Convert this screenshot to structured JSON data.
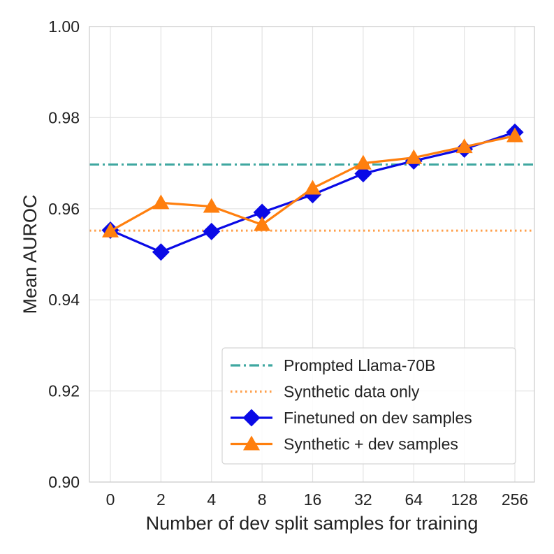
{
  "chart_data": {
    "type": "line",
    "title": "",
    "xlabel": "Number of dev split samples for training",
    "ylabel": "Mean AUROC",
    "categories": [
      "0",
      "2",
      "4",
      "8",
      "16",
      "32",
      "64",
      "128",
      "256"
    ],
    "ylim": [
      0.9,
      1.0
    ],
    "yticks": [
      0.9,
      0.92,
      0.94,
      0.96,
      0.98,
      1.0
    ],
    "ytick_labels": [
      "0.90",
      "0.92",
      "0.94",
      "0.96",
      "0.98",
      "1.00"
    ],
    "grid": true,
    "legend_position": "lower-right",
    "reference_lines": [
      {
        "name": "Prompted Llama-70B",
        "value": 0.9697,
        "color": "#3fa7a0",
        "style": "dashdot"
      },
      {
        "name": "Synthetic data only",
        "value": 0.9552,
        "color": "#ff9f4a",
        "style": "dotted"
      }
    ],
    "series": [
      {
        "name": "Finetuned on dev samples",
        "color": "#0a0ae6",
        "marker": "diamond",
        "values": [
          0.9553,
          0.9505,
          0.955,
          0.9592,
          0.9631,
          0.9677,
          0.9705,
          0.9731,
          0.9768
        ]
      },
      {
        "name": "Synthetic + dev samples",
        "color": "#ff7f0e",
        "marker": "triangle",
        "values": [
          0.9551,
          0.9613,
          0.9605,
          0.9565,
          0.9645,
          0.97,
          0.9712,
          0.9736,
          0.976
        ]
      }
    ]
  }
}
